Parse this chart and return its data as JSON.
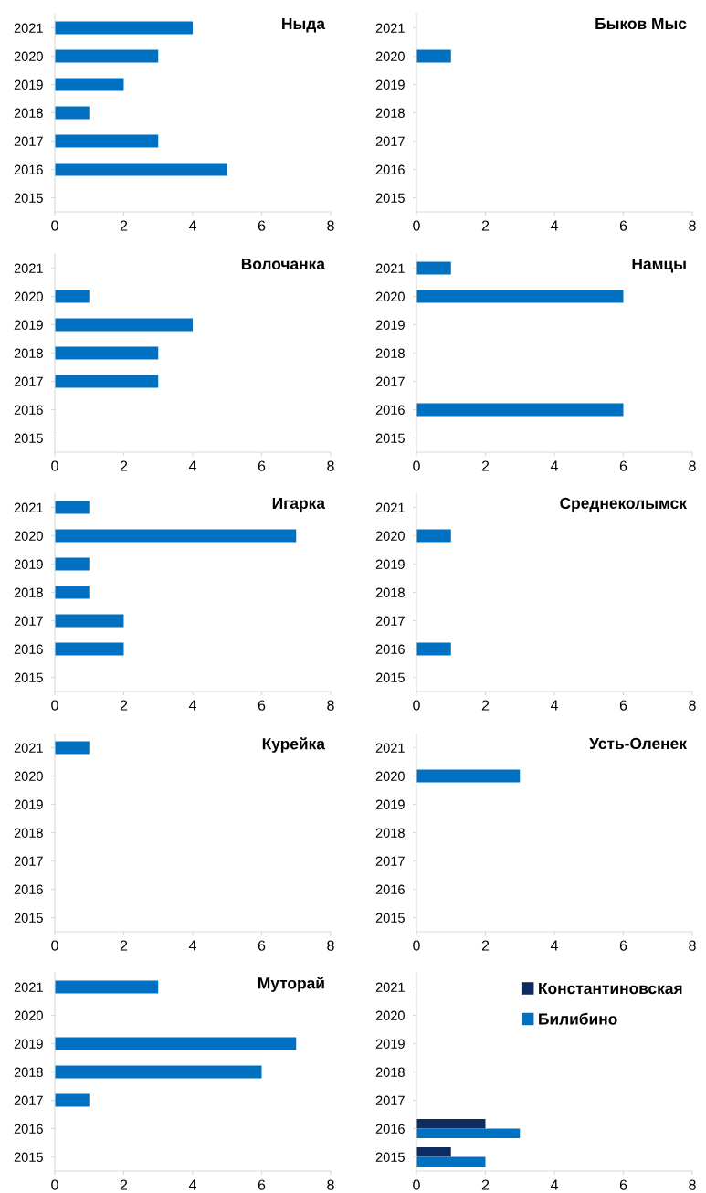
{
  "chart_data": [
    {
      "type": "bar",
      "orientation": "horizontal",
      "title": "Ныда",
      "categories": [
        "2021",
        "2020",
        "2019",
        "2018",
        "2017",
        "2016",
        "2015"
      ],
      "series": [
        {
          "color": "#0070c0",
          "values": [
            4,
            3,
            2,
            1,
            3,
            5,
            0
          ]
        }
      ],
      "xlim": [
        0,
        8
      ],
      "xticks": [
        0,
        2,
        4,
        6,
        8
      ],
      "grid": false,
      "legend": false
    },
    {
      "type": "bar",
      "orientation": "horizontal",
      "title": "Быков Мыс",
      "categories": [
        "2021",
        "2020",
        "2019",
        "2018",
        "2017",
        "2016",
        "2015"
      ],
      "series": [
        {
          "color": "#0070c0",
          "values": [
            0,
            1,
            0,
            0,
            0,
            0,
            0
          ]
        }
      ],
      "xlim": [
        0,
        8
      ],
      "xticks": [
        0,
        2,
        4,
        6,
        8
      ],
      "grid": false,
      "legend": false
    },
    {
      "type": "bar",
      "orientation": "horizontal",
      "title": "Волочанка",
      "categories": [
        "2021",
        "2020",
        "2019",
        "2018",
        "2017",
        "2016",
        "2015"
      ],
      "series": [
        {
          "color": "#0070c0",
          "values": [
            0,
            1,
            4,
            3,
            3,
            0,
            0
          ]
        }
      ],
      "xlim": [
        0,
        8
      ],
      "xticks": [
        0,
        2,
        4,
        6,
        8
      ],
      "grid": false,
      "legend": false
    },
    {
      "type": "bar",
      "orientation": "horizontal",
      "title": "Намцы",
      "categories": [
        "2021",
        "2020",
        "2019",
        "2018",
        "2017",
        "2016",
        "2015"
      ],
      "series": [
        {
          "color": "#0070c0",
          "values": [
            1,
            6,
            0,
            0,
            0,
            6,
            0
          ]
        }
      ],
      "xlim": [
        0,
        8
      ],
      "xticks": [
        0,
        2,
        4,
        6,
        8
      ],
      "grid": false,
      "legend": false
    },
    {
      "type": "bar",
      "orientation": "horizontal",
      "title": "Игарка",
      "categories": [
        "2021",
        "2020",
        "2019",
        "2018",
        "2017",
        "2016",
        "2015"
      ],
      "series": [
        {
          "color": "#0070c0",
          "values": [
            1,
            7,
            1,
            1,
            2,
            2,
            0
          ]
        }
      ],
      "xlim": [
        0,
        8
      ],
      "xticks": [
        0,
        2,
        4,
        6,
        8
      ],
      "grid": false,
      "legend": false
    },
    {
      "type": "bar",
      "orientation": "horizontal",
      "title": "Среднеколымск",
      "categories": [
        "2021",
        "2020",
        "2019",
        "2018",
        "2017",
        "2016",
        "2015"
      ],
      "series": [
        {
          "color": "#0070c0",
          "values": [
            0,
            1,
            0,
            0,
            0,
            1,
            0
          ]
        }
      ],
      "xlim": [
        0,
        8
      ],
      "xticks": [
        0,
        2,
        4,
        6,
        8
      ],
      "grid": false,
      "legend": false
    },
    {
      "type": "bar",
      "orientation": "horizontal",
      "title": "Курейка",
      "categories": [
        "2021",
        "2020",
        "2019",
        "2018",
        "2017",
        "2016",
        "2015"
      ],
      "series": [
        {
          "color": "#0070c0",
          "values": [
            1,
            0,
            0,
            0,
            0,
            0,
            0
          ]
        }
      ],
      "xlim": [
        0,
        8
      ],
      "xticks": [
        0,
        2,
        4,
        6,
        8
      ],
      "grid": false,
      "legend": false
    },
    {
      "type": "bar",
      "orientation": "horizontal",
      "title": "Усть-Оленек",
      "categories": [
        "2021",
        "2020",
        "2019",
        "2018",
        "2017",
        "2016",
        "2015"
      ],
      "series": [
        {
          "color": "#0070c0",
          "values": [
            0,
            3,
            0,
            0,
            0,
            0,
            0
          ]
        }
      ],
      "xlim": [
        0,
        8
      ],
      "xticks": [
        0,
        2,
        4,
        6,
        8
      ],
      "grid": false,
      "legend": false
    },
    {
      "type": "bar",
      "orientation": "horizontal",
      "title": "Муторай",
      "categories": [
        "2021",
        "2020",
        "2019",
        "2018",
        "2017",
        "2016",
        "2015"
      ],
      "series": [
        {
          "color": "#0070c0",
          "values": [
            3,
            0,
            7,
            6,
            1,
            0,
            0
          ]
        }
      ],
      "xlim": [
        0,
        8
      ],
      "xticks": [
        0,
        2,
        4,
        6,
        8
      ],
      "grid": false,
      "legend": false
    },
    {
      "type": "bar",
      "orientation": "horizontal",
      "categories": [
        "2021",
        "2020",
        "2019",
        "2018",
        "2017",
        "2016",
        "2015"
      ],
      "series": [
        {
          "name": "Константиновская",
          "color": "#0d2b61",
          "values": [
            0,
            0,
            0,
            0,
            0,
            2,
            1
          ]
        },
        {
          "name": "Билибино",
          "color": "#0070c0",
          "values": [
            0,
            0,
            0,
            0,
            0,
            3,
            2
          ]
        }
      ],
      "xlim": [
        0,
        8
      ],
      "xticks": [
        0,
        2,
        4,
        6,
        8
      ],
      "grid": false,
      "legend": "top right"
    }
  ]
}
